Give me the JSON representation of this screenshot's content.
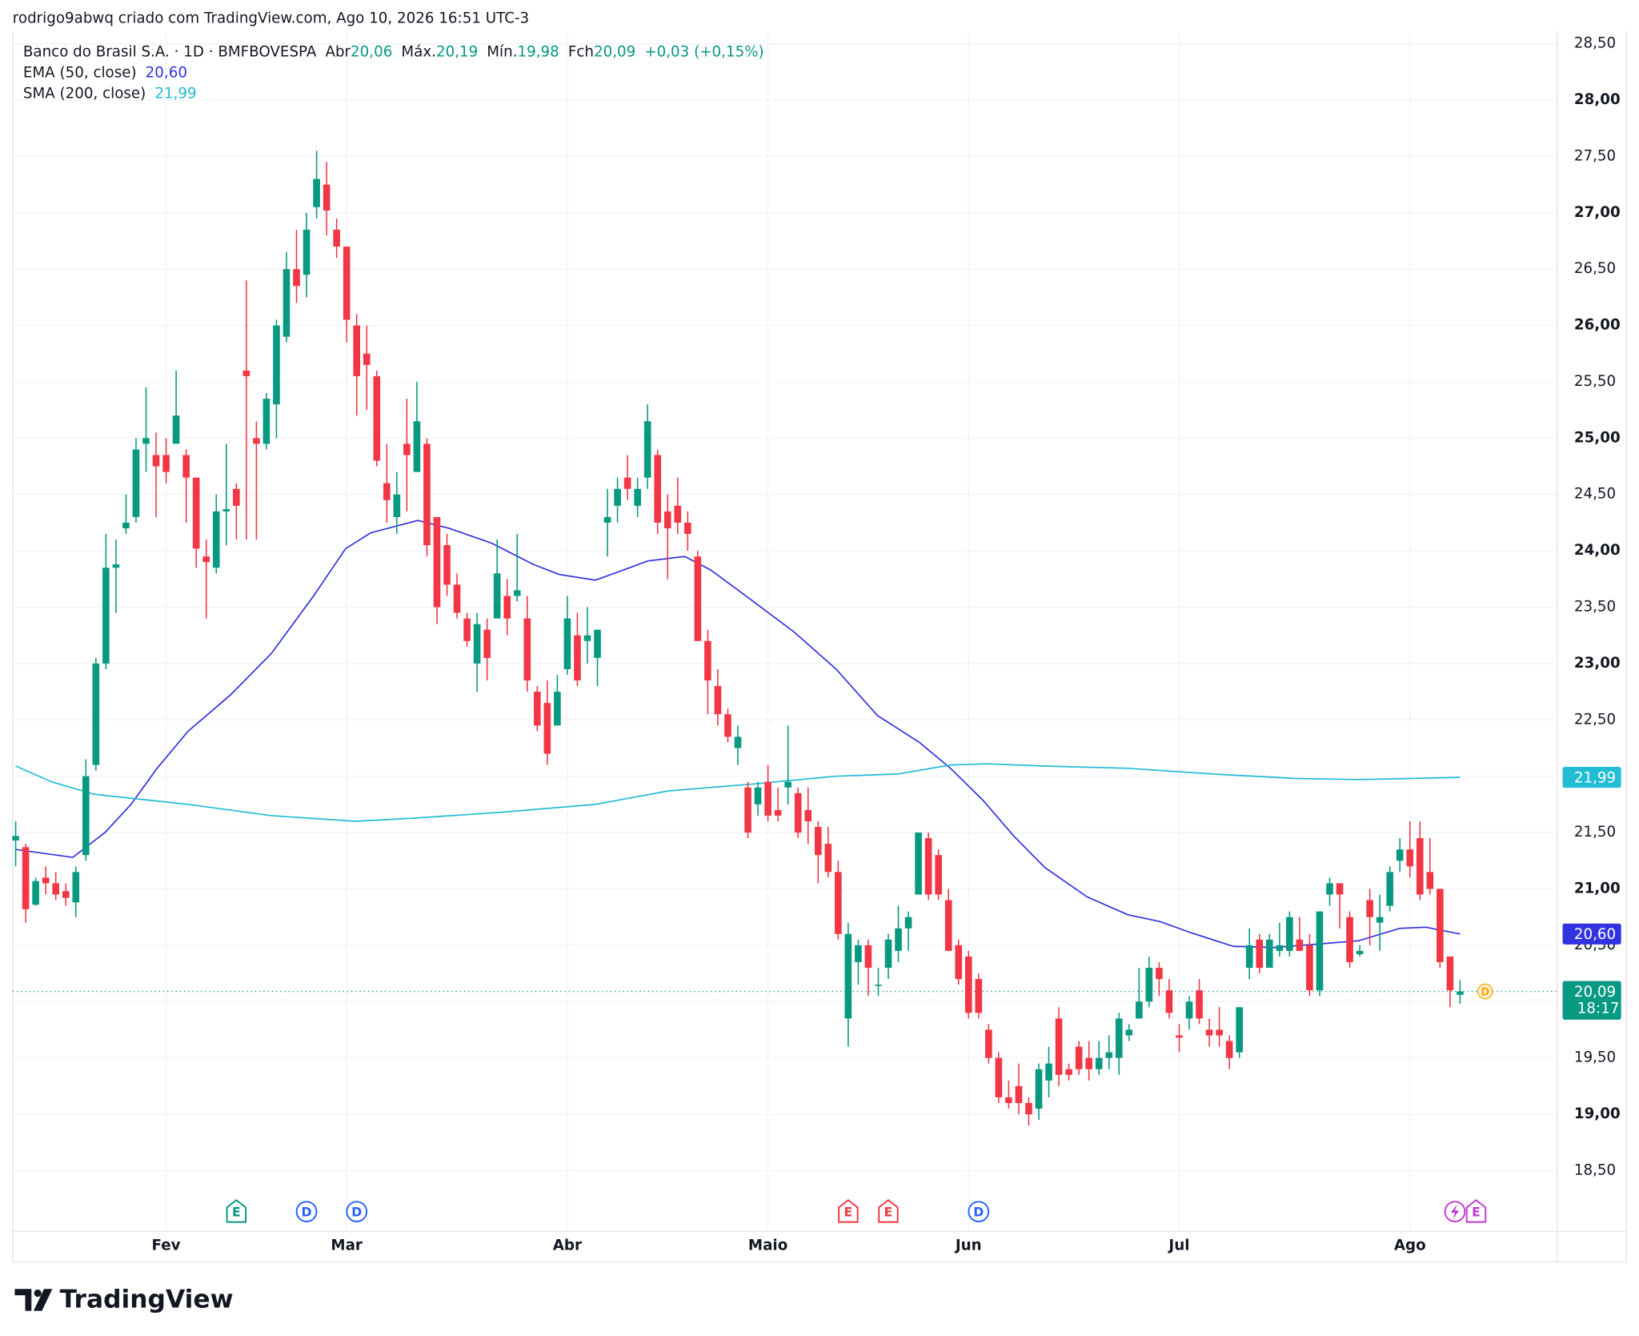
{
  "header": {
    "credit": "rodrigo9abwq criado com TradingView.com, Ago 10, 2026 16:51 UTC-3"
  },
  "brand": "TradingView",
  "chart_data": {
    "type": "candlestick",
    "legend": {
      "symbol": "Banco do Brasil S.A. · 1D · BMFBOVESPA",
      "open_label": "Abr",
      "open": "20,06",
      "high_label": "Máx.",
      "high": "20,19",
      "low_label": "Mín.",
      "low": "19,98",
      "close_label": "Fch",
      "close": "20,09",
      "change": "+0,03 (+0,15%)"
    },
    "up_color": "#089981",
    "down_color": "#f23645",
    "open": [
      21.43,
      21.37,
      20.86,
      21.1,
      21.05,
      20.98,
      20.88,
      21.3,
      22.1,
      23.0,
      23.85,
      24.2,
      24.3,
      24.95,
      24.85,
      24.85,
      24.95,
      24.85,
      24.65,
      23.95,
      23.85,
      24.35,
      24.55,
      25.6,
      25.0,
      24.95,
      25.3,
      25.9,
      26.5,
      26.45,
      27.05,
      27.25,
      26.85,
      26.7,
      26.0,
      25.75,
      25.55,
      24.6,
      24.3,
      24.95,
      24.7,
      24.95,
      24.3,
      24.05,
      23.7,
      23.4,
      23.0,
      23.3,
      23.4,
      23.6,
      23.6,
      23.4,
      22.75,
      22.65,
      22.45,
      22.95,
      23.25,
      23.2,
      23.05,
      24.25,
      24.4,
      24.65,
      24.4,
      24.65,
      24.85,
      24.35,
      24.4,
      24.25,
      23.95,
      23.2,
      22.8,
      22.55,
      22.25,
      21.9,
      21.75,
      21.95,
      21.7,
      21.9,
      21.85,
      21.7,
      21.55,
      21.4,
      21.15,
      19.85,
      20.35,
      20.5,
      20.15,
      20.3,
      20.45,
      20.65,
      20.95,
      21.45,
      21.3,
      20.9,
      20.5,
      20.4,
      20.2,
      19.75,
      19.5,
      19.15,
      19.25,
      19.1,
      19.05,
      19.3,
      19.85,
      19.4,
      19.6,
      19.5,
      19.4,
      19.5,
      19.5,
      19.7,
      19.85,
      20.0,
      20.3,
      20.1,
      19.7,
      19.85,
      20.1,
      19.75,
      19.75,
      19.65,
      19.55,
      20.3,
      20.55,
      20.3,
      20.45,
      20.45,
      20.55,
      20.5,
      20.1,
      20.95,
      21.05,
      20.75,
      20.42,
      20.9,
      20.7,
      20.85,
      21.25,
      21.35,
      21.45,
      21.15,
      21.0,
      20.4,
      20.06
    ],
    "high": [
      21.6,
      21.4,
      21.1,
      21.2,
      21.15,
      21.05,
      21.2,
      22.15,
      23.05,
      24.15,
      24.1,
      24.5,
      25.0,
      25.45,
      25.05,
      25.0,
      25.6,
      24.9,
      24.65,
      24.1,
      24.5,
      24.95,
      24.6,
      26.4,
      25.15,
      25.4,
      26.05,
      26.65,
      26.85,
      27.0,
      27.55,
      27.45,
      26.95,
      26.7,
      26.1,
      26.0,
      25.6,
      24.95,
      24.7,
      25.35,
      25.5,
      25.0,
      24.3,
      24.15,
      23.8,
      23.45,
      23.45,
      23.4,
      24.1,
      23.75,
      24.15,
      23.6,
      22.8,
      22.85,
      22.9,
      23.6,
      23.45,
      23.5,
      23.3,
      24.55,
      24.65,
      24.85,
      24.65,
      25.3,
      24.9,
      24.5,
      24.65,
      24.35,
      24.0,
      23.3,
      22.95,
      22.6,
      22.45,
      21.95,
      21.95,
      22.1,
      21.9,
      22.45,
      21.9,
      21.9,
      21.6,
      21.55,
      21.25,
      20.7,
      20.55,
      20.55,
      20.3,
      20.6,
      20.85,
      20.8,
      21.5,
      21.5,
      21.35,
      21.0,
      20.55,
      20.45,
      20.25,
      19.8,
      19.55,
      19.3,
      19.45,
      19.15,
      19.45,
      19.6,
      19.95,
      19.45,
      19.65,
      19.65,
      19.65,
      19.7,
      19.9,
      19.8,
      20.3,
      20.4,
      20.35,
      20.2,
      19.8,
      20.05,
      20.2,
      19.85,
      19.95,
      19.7,
      19.95,
      20.65,
      20.6,
      20.6,
      20.7,
      20.8,
      20.75,
      20.6,
      20.8,
      21.1,
      21.05,
      20.8,
      20.5,
      21.0,
      20.95,
      21.2,
      21.45,
      21.6,
      21.6,
      21.45,
      21.0,
      20.4,
      20.19
    ],
    "low": [
      21.2,
      20.7,
      20.85,
      20.95,
      20.9,
      20.85,
      20.75,
      21.25,
      22.05,
      22.95,
      23.45,
      24.15,
      24.25,
      24.7,
      24.3,
      24.6,
      24.95,
      24.25,
      23.85,
      23.4,
      23.8,
      24.05,
      24.1,
      24.1,
      24.1,
      24.9,
      25.0,
      25.85,
      26.2,
      26.25,
      26.95,
      26.8,
      26.6,
      25.85,
      25.2,
      25.25,
      24.75,
      24.25,
      24.15,
      24.35,
      24.7,
      23.95,
      23.35,
      23.6,
      23.4,
      23.15,
      22.75,
      22.85,
      23.4,
      23.25,
      23.55,
      22.75,
      22.4,
      22.1,
      22.45,
      22.9,
      22.8,
      23.0,
      22.8,
      23.95,
      24.25,
      24.45,
      24.3,
      24.55,
      24.15,
      23.75,
      24.15,
      24.0,
      23.2,
      22.55,
      22.45,
      22.3,
      22.1,
      21.45,
      21.65,
      21.6,
      21.6,
      21.75,
      21.45,
      21.4,
      21.05,
      21.1,
      20.55,
      19.6,
      20.15,
      20.05,
      20.05,
      20.2,
      20.35,
      20.45,
      20.95,
      20.9,
      20.9,
      20.45,
      20.15,
      19.85,
      19.85,
      19.45,
      19.1,
      19.05,
      19.0,
      18.9,
      18.95,
      19.15,
      19.25,
      19.3,
      19.35,
      19.3,
      19.35,
      19.4,
      19.35,
      19.65,
      19.85,
      19.95,
      20.05,
      19.85,
      19.55,
      19.75,
      19.8,
      19.6,
      19.6,
      19.4,
      19.5,
      20.2,
      20.25,
      20.3,
      20.4,
      20.4,
      20.45,
      20.05,
      20.05,
      20.85,
      20.65,
      20.3,
      20.4,
      20.5,
      20.45,
      20.8,
      21.15,
      21.1,
      20.9,
      20.95,
      20.3,
      19.95,
      19.98
    ],
    "close": [
      21.47,
      20.82,
      21.07,
      21.05,
      20.95,
      20.92,
      21.15,
      22.0,
      23.0,
      23.85,
      23.88,
      24.25,
      24.9,
      25.0,
      24.75,
      24.7,
      25.2,
      24.65,
      24.02,
      23.9,
      24.35,
      24.37,
      24.4,
      25.55,
      24.95,
      25.35,
      26.0,
      26.5,
      26.35,
      26.85,
      27.3,
      27.02,
      26.7,
      26.05,
      25.55,
      25.65,
      24.8,
      24.45,
      24.5,
      24.85,
      25.15,
      24.05,
      23.5,
      23.7,
      23.45,
      23.2,
      23.35,
      23.05,
      23.8,
      23.4,
      23.65,
      22.85,
      22.45,
      22.2,
      22.75,
      23.4,
      22.85,
      23.25,
      23.3,
      24.3,
      24.55,
      24.55,
      24.55,
      25.15,
      24.25,
      24.2,
      24.25,
      24.15,
      23.2,
      22.85,
      22.55,
      22.35,
      22.35,
      21.5,
      21.9,
      21.65,
      21.65,
      21.95,
      21.5,
      21.6,
      21.3,
      21.15,
      20.6,
      20.6,
      20.5,
      20.3,
      20.15,
      20.55,
      20.65,
      20.75,
      21.5,
      20.95,
      20.95,
      20.45,
      20.2,
      19.9,
      19.9,
      19.5,
      19.15,
      19.1,
      19.1,
      19.0,
      19.4,
      19.45,
      19.35,
      19.35,
      19.4,
      19.4,
      19.5,
      19.55,
      19.85,
      19.75,
      20.0,
      20.3,
      20.2,
      19.9,
      19.68,
      20.0,
      19.85,
      19.7,
      19.7,
      19.5,
      19.95,
      20.5,
      20.3,
      20.55,
      20.5,
      20.75,
      20.45,
      20.1,
      20.8,
      21.05,
      20.95,
      20.35,
      20.45,
      20.75,
      20.75,
      21.15,
      21.35,
      21.2,
      20.95,
      21.0,
      20.35,
      20.1,
      20.09
    ],
    "series": [
      {
        "name": "EMA (50, close)",
        "color": "#3232e0",
        "value_label": "20,60",
        "x": [
          0,
          5.7,
          8.9,
          11.5,
          14.1,
          17.2,
          21.4,
          25.5,
          29.7,
          32.9,
          35.4,
          40.1,
          43.2,
          47.4,
          51.6,
          54.2,
          57.8,
          60.9,
          63,
          66.7,
          69.3,
          73.4,
          77.6,
          81.8,
          85.9,
          90.1,
          93.2,
          96.4,
          99.5,
          102.6,
          106.8,
          110.9,
          114.1,
          117.2,
          121.4,
          125.5,
          129.7,
          133.9,
          138,
          140.6,
          144
        ],
        "values": [
          21.35,
          21.28,
          21.5,
          21.75,
          22.07,
          22.4,
          22.72,
          23.09,
          23.6,
          24.02,
          24.16,
          24.27,
          24.2,
          24.07,
          23.88,
          23.79,
          23.74,
          23.84,
          23.91,
          23.95,
          23.83,
          23.56,
          23.28,
          22.95,
          22.54,
          22.3,
          22.07,
          21.79,
          21.47,
          21.19,
          20.93,
          20.77,
          20.71,
          20.61,
          20.49,
          20.48,
          20.51,
          20.54,
          20.65,
          20.66,
          20.6
        ]
      },
      {
        "name": "SMA (200, close)",
        "color": "#22bcd4",
        "value_label": "21,99",
        "x": [
          0,
          3.6,
          7.8,
          17.2,
          25.5,
          33.9,
          40.1,
          48.4,
          57.8,
          65.1,
          73.4,
          81.8,
          88,
          93.2,
          96.9,
          102.6,
          110.9,
          119.3,
          127.6,
          133.9,
          144
        ],
        "values": [
          22.09,
          21.95,
          21.84,
          21.75,
          21.65,
          21.6,
          21.63,
          21.68,
          21.75,
          21.87,
          21.93,
          22.0,
          22.02,
          22.1,
          22.11,
          22.09,
          22.07,
          22.02,
          21.98,
          21.97,
          21.99
        ]
      }
    ],
    "last_price": {
      "value": 20.09,
      "label": "20,09",
      "countdown": "18:17"
    },
    "xlim": [
      -0.3,
      153.7
    ],
    "xticks": [
      {
        "value": 15,
        "label": "Fev"
      },
      {
        "value": 33,
        "label": "Mar"
      },
      {
        "value": 55,
        "label": "Abr"
      },
      {
        "value": 75,
        "label": "Maio"
      },
      {
        "value": 95,
        "label": "Jun"
      },
      {
        "value": 116,
        "label": "Jul"
      },
      {
        "value": 139,
        "label": "Ago"
      }
    ],
    "ylim": [
      17.96,
      28.61
    ],
    "yticks": [
      {
        "value": 18.5,
        "label": "18,50"
      },
      {
        "value": 19,
        "label": "19,00"
      },
      {
        "value": 19.5,
        "label": "19,50"
      },
      {
        "value": 20,
        "label": "20,00"
      },
      {
        "value": 20.5,
        "label": "20,50"
      },
      {
        "value": 21,
        "label": "21,00"
      },
      {
        "value": 21.5,
        "label": "21,50"
      },
      {
        "value": 22,
        "label": "22,00"
      },
      {
        "value": 22.5,
        "label": "22,50"
      },
      {
        "value": 23,
        "label": "23,00"
      },
      {
        "value": 23.5,
        "label": "23,50"
      },
      {
        "value": 24,
        "label": "24,00"
      },
      {
        "value": 24.5,
        "label": "24,50"
      },
      {
        "value": 25,
        "label": "25,00"
      },
      {
        "value": 25.5,
        "label": "25,50"
      },
      {
        "value": 26,
        "label": "26,00"
      },
      {
        "value": 26.5,
        "label": "26,50"
      },
      {
        "value": 27,
        "label": "27,00"
      },
      {
        "value": 27.5,
        "label": "27,50"
      },
      {
        "value": 28,
        "label": "28,00"
      },
      {
        "value": 28.5,
        "label": "28,50"
      }
    ],
    "grid": true,
    "events": [
      {
        "label": "E",
        "x": 22,
        "color": "#089981",
        "shape": "badge"
      },
      {
        "label": "D",
        "x": 29,
        "color": "#2962ff",
        "shape": "circle"
      },
      {
        "label": "D",
        "x": 34,
        "color": "#2962ff",
        "shape": "circle"
      },
      {
        "label": "E",
        "x": 83,
        "color": "#f23645",
        "shape": "badge"
      },
      {
        "label": "E",
        "x": 87,
        "color": "#f23645",
        "shape": "badge"
      },
      {
        "label": "D",
        "x": 96,
        "color": "#2962ff",
        "shape": "circle"
      },
      {
        "label": "E",
        "x": 145.6,
        "color": "#c338d8",
        "shape": "badge"
      }
    ],
    "price_marker": {
      "label": "D",
      "color": "#f7a600"
    }
  }
}
